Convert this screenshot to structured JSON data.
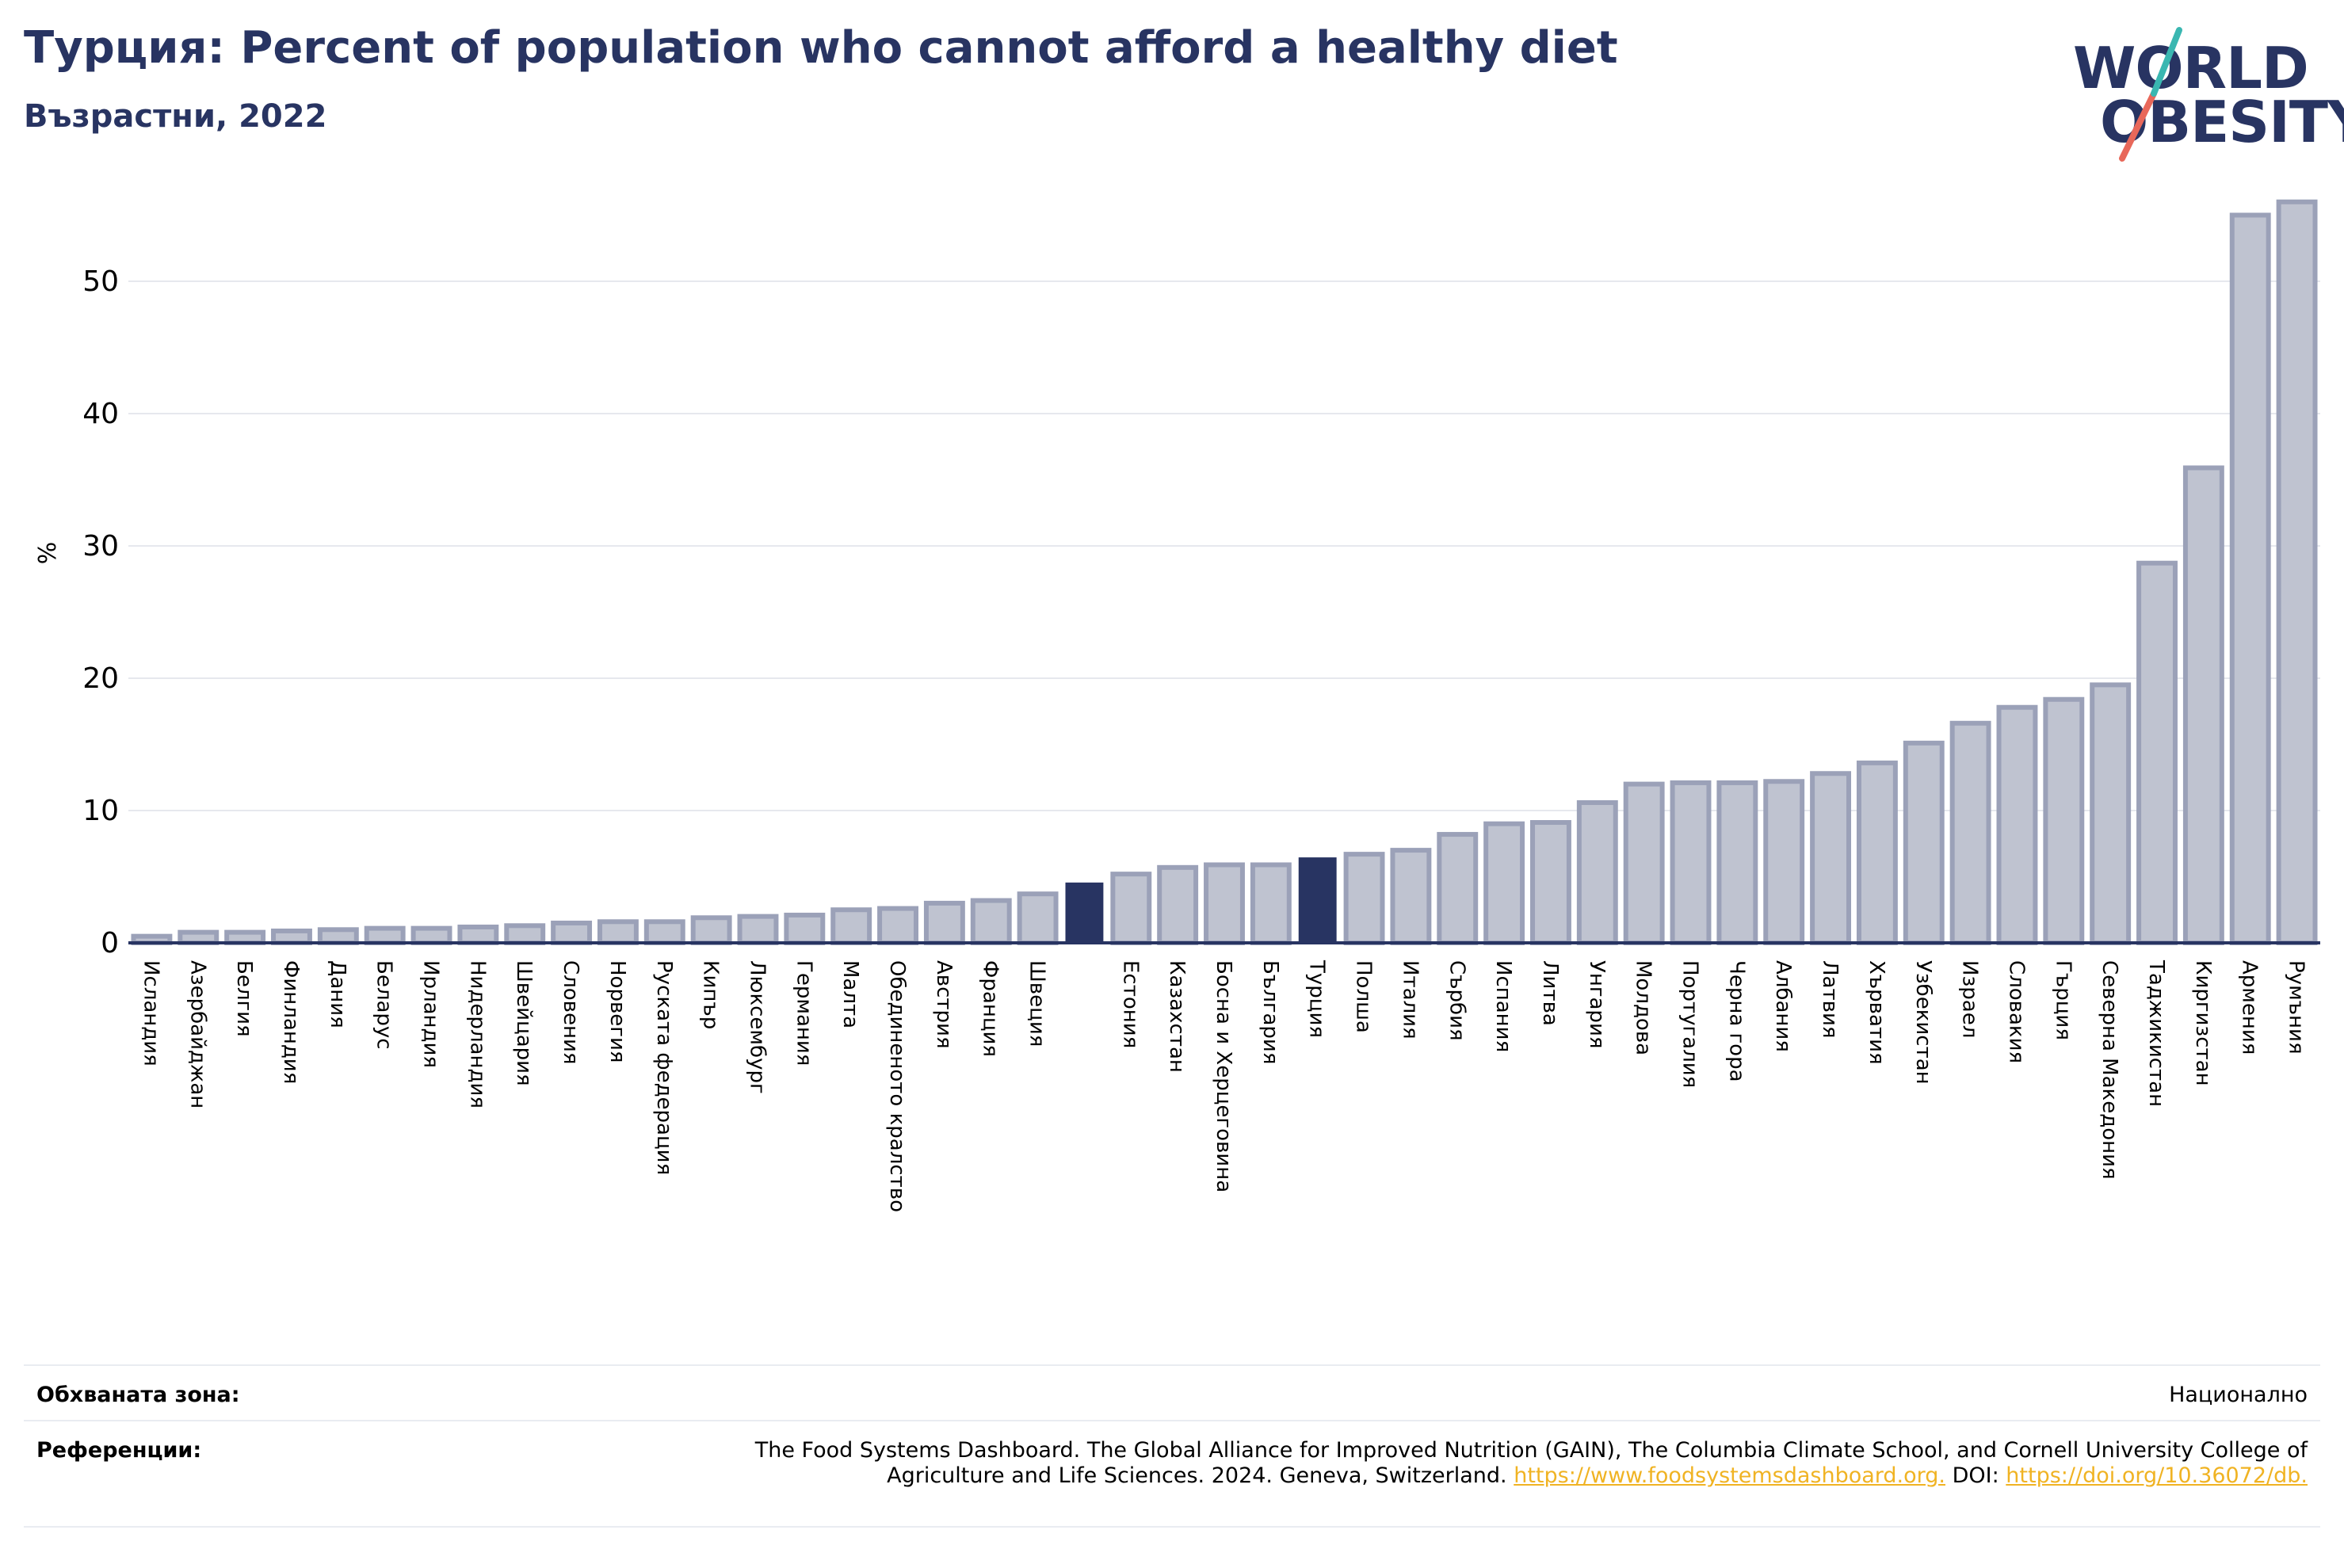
{
  "header": {
    "title": "Турция: Percent of population who cannot afford a healthy diet",
    "subtitle": "Възрастни, 2022"
  },
  "logo": {
    "line1": "WORLD",
    "line2": "OBESITY"
  },
  "colors": {
    "highlight": "#283462",
    "bar_fill": "#bfc3d0",
    "bar_stroke": "#9ba1b8",
    "grid": "#e6e8ee",
    "accent_teal": "#3ab7b1",
    "accent_coral": "#e8685a",
    "link": "#f0b323"
  },
  "chart_data": {
    "type": "bar",
    "title": "Турция: Percent of population who cannot afford a healthy diet",
    "ylabel": "%",
    "ylim": [
      0,
      57
    ],
    "yticks": [
      0,
      10,
      20,
      30,
      40,
      50
    ],
    "grid": true,
    "categories": [
      "Исландия",
      "Азербайджан",
      "Белгия",
      "Финландия",
      "Дания",
      "Беларус",
      "Ирландия",
      "Нидерландия",
      "Швейцария",
      "Словения",
      "Норвегия",
      "Руската федерация",
      "Кипър",
      "Люксембург",
      "Германия",
      "Малта",
      "Обединеното кралство",
      "Австрия",
      "Франция",
      "Швеция",
      "",
      "Естония",
      "Казахстан",
      "Босна и Херцеговина",
      "България",
      "Турция",
      "Полша",
      "Италия",
      "Сърбия",
      "Испания",
      "Литва",
      "Унгария",
      "Молдова",
      "Португалия",
      "Черна гора",
      "Албания",
      "Латвия",
      "Хърватия",
      "Узбекистан",
      "Израел",
      "Словакия",
      "Гърция",
      "Северна Македония",
      "Таджикистан",
      "Киргизстан",
      "Армения",
      "Румъния"
    ],
    "values": [
      0.5,
      0.8,
      0.8,
      0.9,
      1.0,
      1.1,
      1.1,
      1.2,
      1.3,
      1.5,
      1.6,
      1.6,
      1.9,
      2.0,
      2.1,
      2.5,
      2.6,
      3.0,
      3.2,
      3.7,
      4.5,
      5.2,
      5.7,
      5.9,
      5.9,
      6.4,
      6.7,
      7.0,
      8.2,
      9.0,
      9.1,
      10.6,
      12.0,
      12.1,
      12.1,
      12.2,
      12.8,
      13.6,
      15.1,
      16.6,
      17.8,
      18.4,
      19.5,
      28.7,
      35.9,
      55.0,
      56.0
    ],
    "highlight_indices": [
      20,
      25
    ]
  },
  "footer": {
    "coverage_label": "Обхваната зона:",
    "coverage_value": "Национално",
    "references_label": "Референции:",
    "references_text": "The Food Systems Dashboard. The Global Alliance for Improved Nutrition (GAIN), The Columbia Climate School, and Cornell University College of Agriculture and Life Sciences. 2024. Geneva, Switzerland.",
    "references_link1": "https://www.foodsystemsdashboard.org.",
    "references_doi_label": "DOI:",
    "references_link2": "https://doi.org/10.36072/db."
  }
}
